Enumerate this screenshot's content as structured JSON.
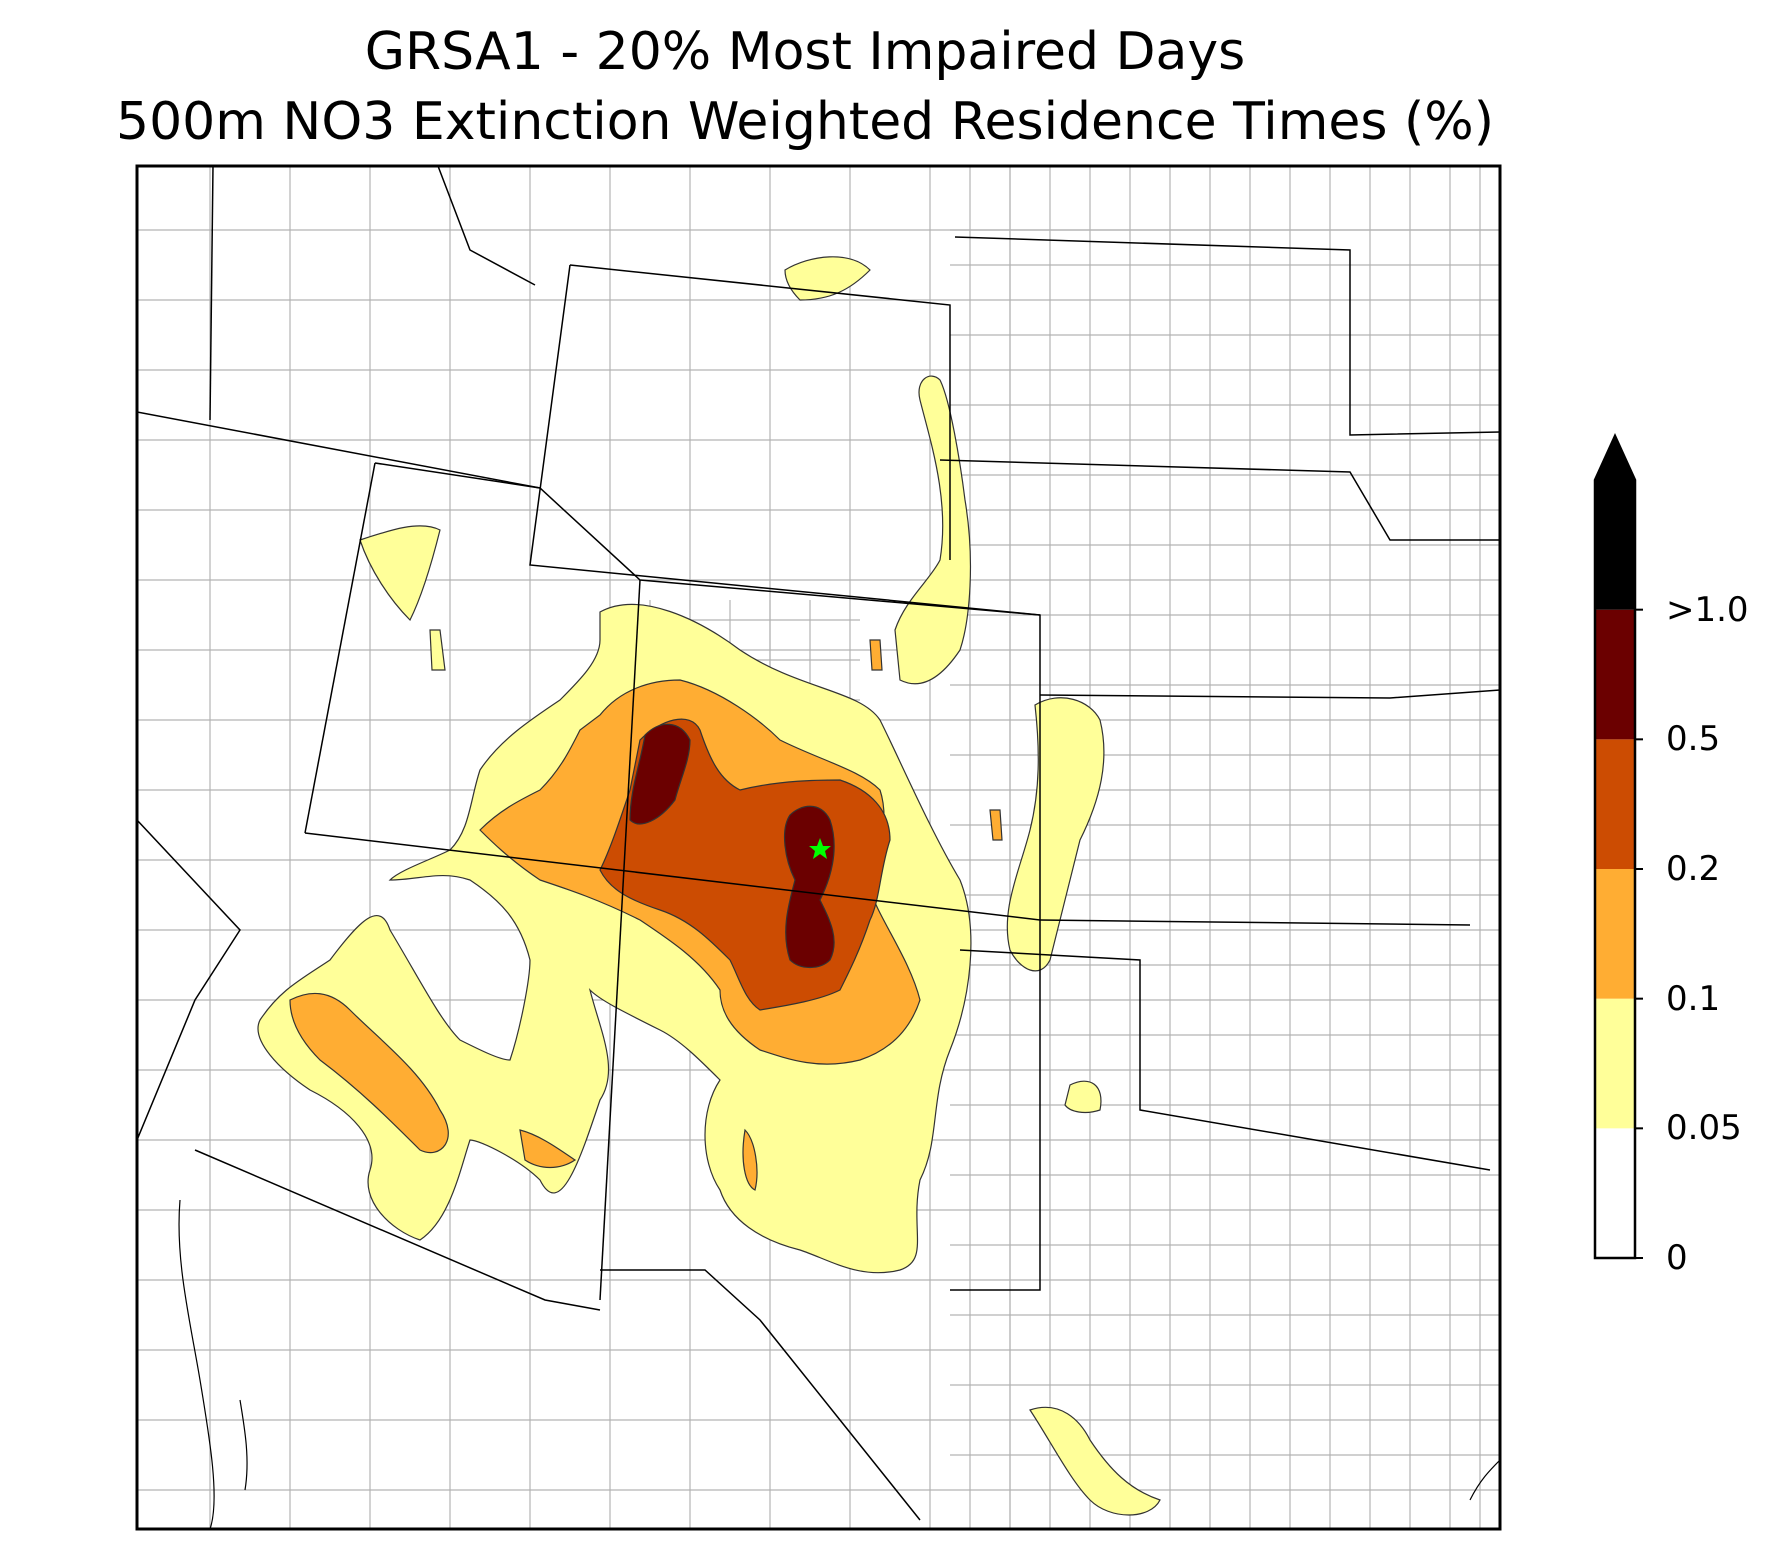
{
  "title": {
    "line1": "GRSA1 - 20% Most Impaired Days",
    "line2": "500m NO3 Extinction Weighted Residence Times (%)"
  },
  "colorbar": {
    "bins": [
      {
        "label": "0",
        "color": "#ffffff"
      },
      {
        "label": "0.05",
        "color": "#ffff99"
      },
      {
        "label": "0.1",
        "color": "#ffad33"
      },
      {
        "label": "0.2",
        "color": "#cc4c02"
      },
      {
        "label": "0.5",
        "color": "#6b0000"
      },
      {
        "label": ">1.0",
        "color": "#000000"
      }
    ],
    "extend": "max"
  },
  "site_marker": {
    "name": "GRSA1",
    "color": "#00ff00",
    "symbol": "star"
  }
}
